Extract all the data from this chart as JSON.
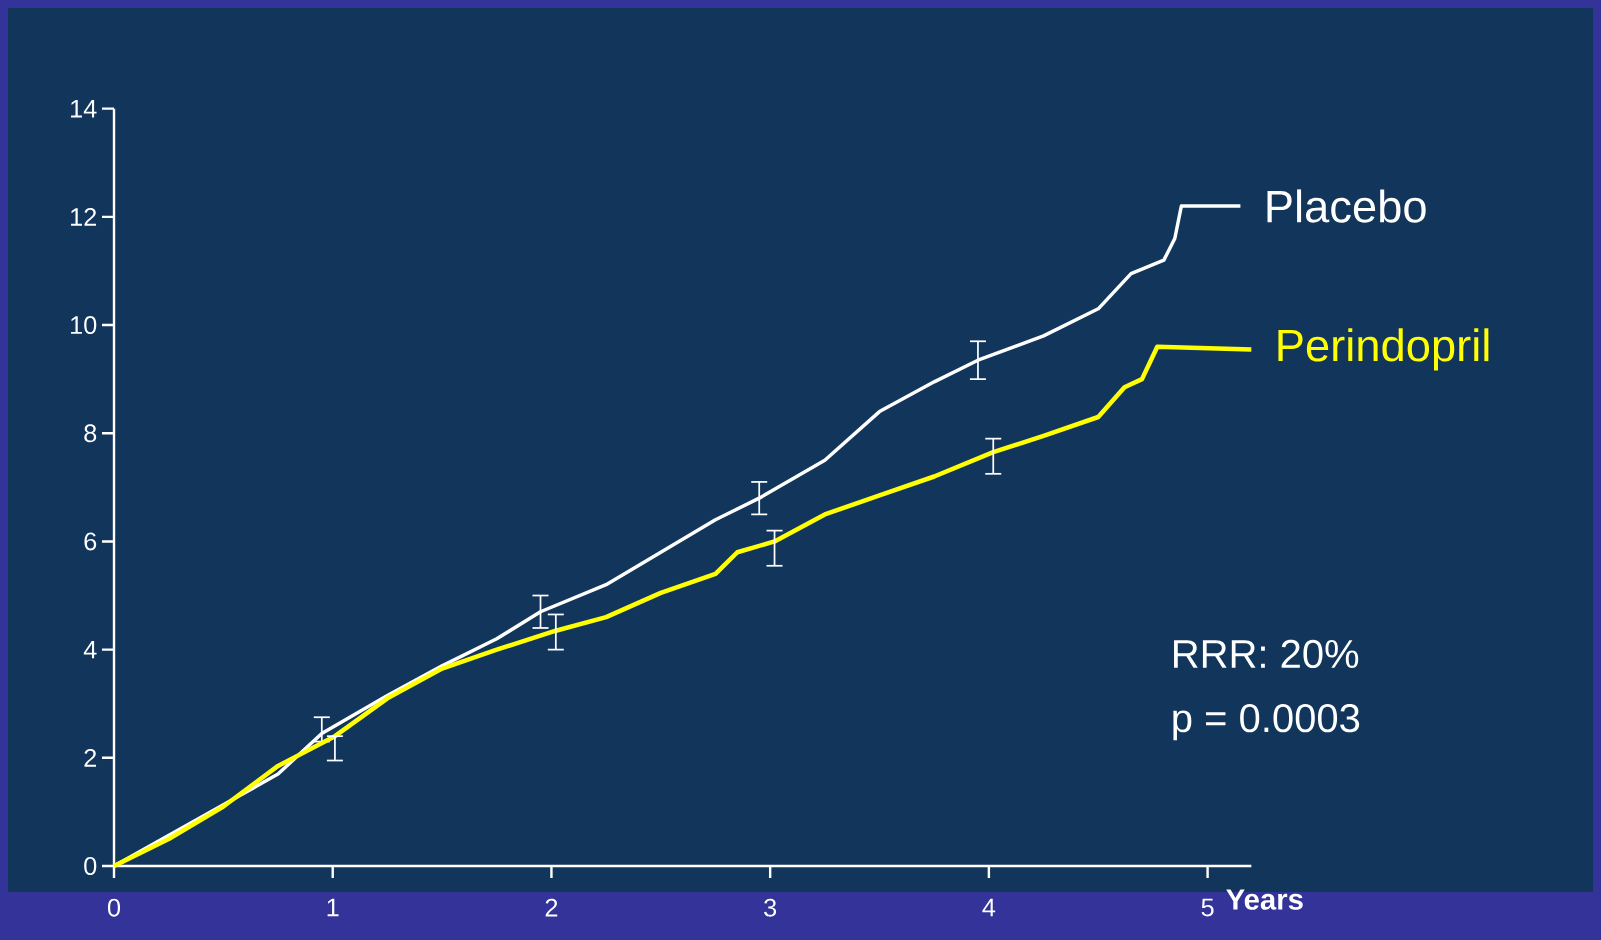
{
  "chart_data": {
    "type": "line",
    "xlabel": "Years",
    "xlim": [
      0,
      5.2
    ],
    "xticks": [
      0,
      1,
      2,
      3,
      4,
      5
    ],
    "ylim": [
      0,
      14
    ],
    "yticks": [
      0,
      2,
      4,
      6,
      8,
      10,
      12,
      14
    ],
    "annotations": [
      "RRR: 20%",
      "p = 0.0003"
    ],
    "series": [
      {
        "name": "Placebo",
        "color": "#ffffff",
        "x": [
          0,
          0.25,
          0.5,
          0.75,
          0.95,
          1.25,
          1.5,
          1.75,
          1.95,
          2.25,
          2.5,
          2.75,
          2.95,
          3.25,
          3.5,
          3.75,
          3.95,
          4.25,
          4.5,
          4.65,
          4.8,
          4.85,
          4.88,
          5.15
        ],
        "values": [
          0,
          null,
          null,
          1.7,
          2.45,
          3.15,
          3.7,
          4.2,
          4.7,
          5.2,
          5.8,
          6.4,
          6.8,
          7.5,
          8.4,
          8.95,
          9.35,
          9.8,
          10.3,
          10.95,
          11.2,
          11.6,
          12.2,
          12.2
        ],
        "errors": [
          null,
          null,
          null,
          null,
          [
            2.3,
            2.75
          ],
          null,
          null,
          null,
          [
            4.4,
            5.0
          ],
          null,
          null,
          null,
          [
            6.5,
            7.1
          ],
          null,
          null,
          null,
          [
            9.0,
            9.7
          ],
          null,
          null,
          null,
          null,
          null,
          null,
          null
        ]
      },
      {
        "name": "Perindopril",
        "color": "#ffff00",
        "x": [
          0,
          0.25,
          0.5,
          0.75,
          1.01,
          1.25,
          1.5,
          1.75,
          2.02,
          2.25,
          2.5,
          2.75,
          2.85,
          3.02,
          3.25,
          3.5,
          3.75,
          4.02,
          4.25,
          4.5,
          4.62,
          4.7,
          4.77,
          5.2
        ],
        "values": [
          0,
          0.5,
          1.1,
          1.85,
          2.4,
          3.1,
          3.65,
          4.0,
          4.35,
          4.6,
          5.05,
          5.4,
          5.8,
          6.0,
          6.5,
          6.85,
          7.2,
          7.65,
          7.95,
          8.3,
          8.85,
          9.0,
          9.6,
          9.55
        ],
        "errors": [
          null,
          null,
          null,
          null,
          [
            1.95,
            2.4
          ],
          null,
          null,
          null,
          [
            4.0,
            4.65
          ],
          null,
          null,
          null,
          null,
          [
            5.55,
            6.2
          ],
          null,
          null,
          null,
          [
            7.25,
            7.9
          ],
          null,
          null,
          null,
          null,
          null,
          null
        ]
      }
    ]
  }
}
